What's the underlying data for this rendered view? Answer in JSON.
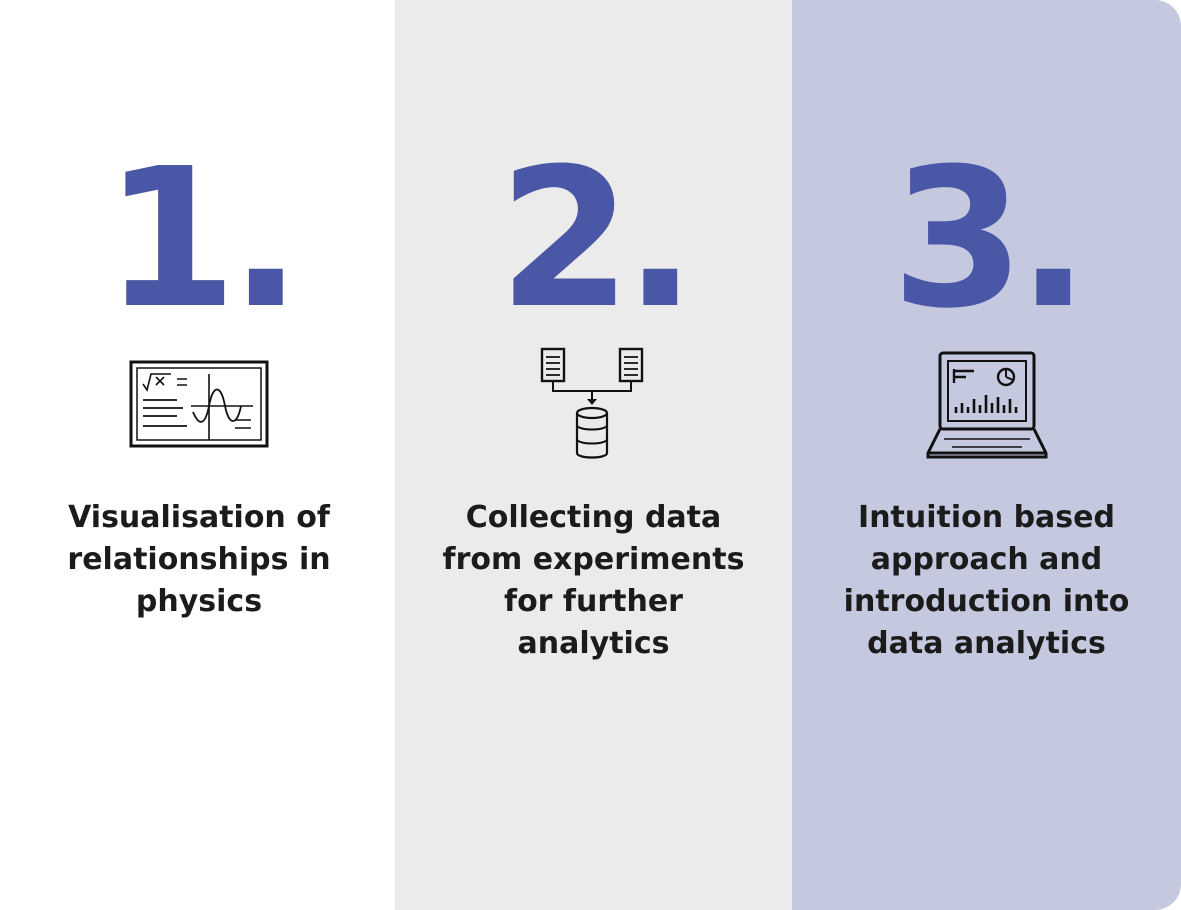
{
  "steps": [
    {
      "number": "1.",
      "icon": "chalkboard-formula-icon",
      "label": "Visualisation of\nrelationships in\nphysics"
    },
    {
      "number": "2.",
      "icon": "documents-to-database-icon",
      "label": "Collecting data\nfrom experiments\nfor further\nanalytics"
    },
    {
      "number": "3.",
      "icon": "laptop-dashboard-icon",
      "label": "Intuition based\napproach and\nintroduction into\ndata analytics"
    }
  ],
  "colors": {
    "number": "#4a56a6",
    "band_2": "#ebebeb",
    "band_3": "#c5c9df",
    "text": "#1b1b1b"
  }
}
